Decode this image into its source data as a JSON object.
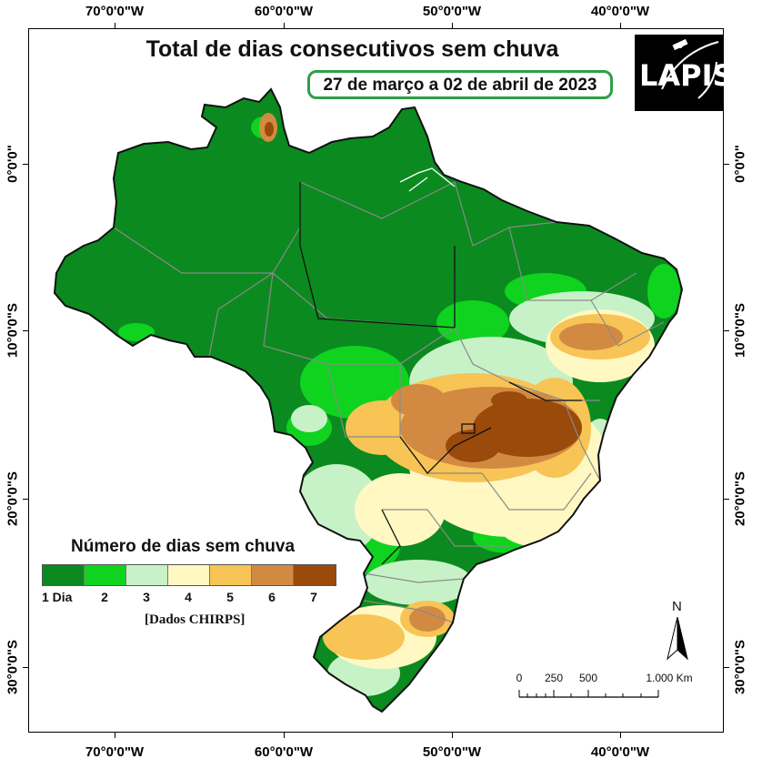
{
  "title": "Total de dias consecutivos sem chuva",
  "period": "27 de março a 02 de abril de 2023",
  "logo": {
    "text": "LAPIS"
  },
  "axes": {
    "top": [
      "70°0'0\"W",
      "60°0'0\"W",
      "50°0'0\"W",
      "40°0'0\"W"
    ],
    "bottom": [
      "70°0'0\"W",
      "60°0'0\"W",
      "50°0'0\"W",
      "40°0'0\"W"
    ],
    "left": [
      "0°0'0\"",
      "10°0'0\"S",
      "20°0'0\"S",
      "30°0'0\"S"
    ],
    "right": [
      "0°0'0\"",
      "10°0'0\"S",
      "20°0'0\"S",
      "30°0'0\"S"
    ]
  },
  "legend": {
    "title": "Número de dias sem chuva",
    "labels": [
      "1 Dia",
      "2",
      "3",
      "4",
      "5",
      "6",
      "7"
    ],
    "colors": [
      "#0b8a1f",
      "#0fd31f",
      "#c7f2c7",
      "#fff8c2",
      "#f7c455",
      "#d28a42",
      "#9a4a0a"
    ],
    "source": "[Dados CHIRPS]"
  },
  "north_arrow": {
    "label": "N"
  },
  "scale_bar": {
    "labels": [
      "0",
      "250",
      "500",
      "1.000 Km"
    ]
  },
  "map_colors": {
    "water": "#ffffff",
    "country_border": "#111111",
    "state_border": "#8a8a8a"
  }
}
